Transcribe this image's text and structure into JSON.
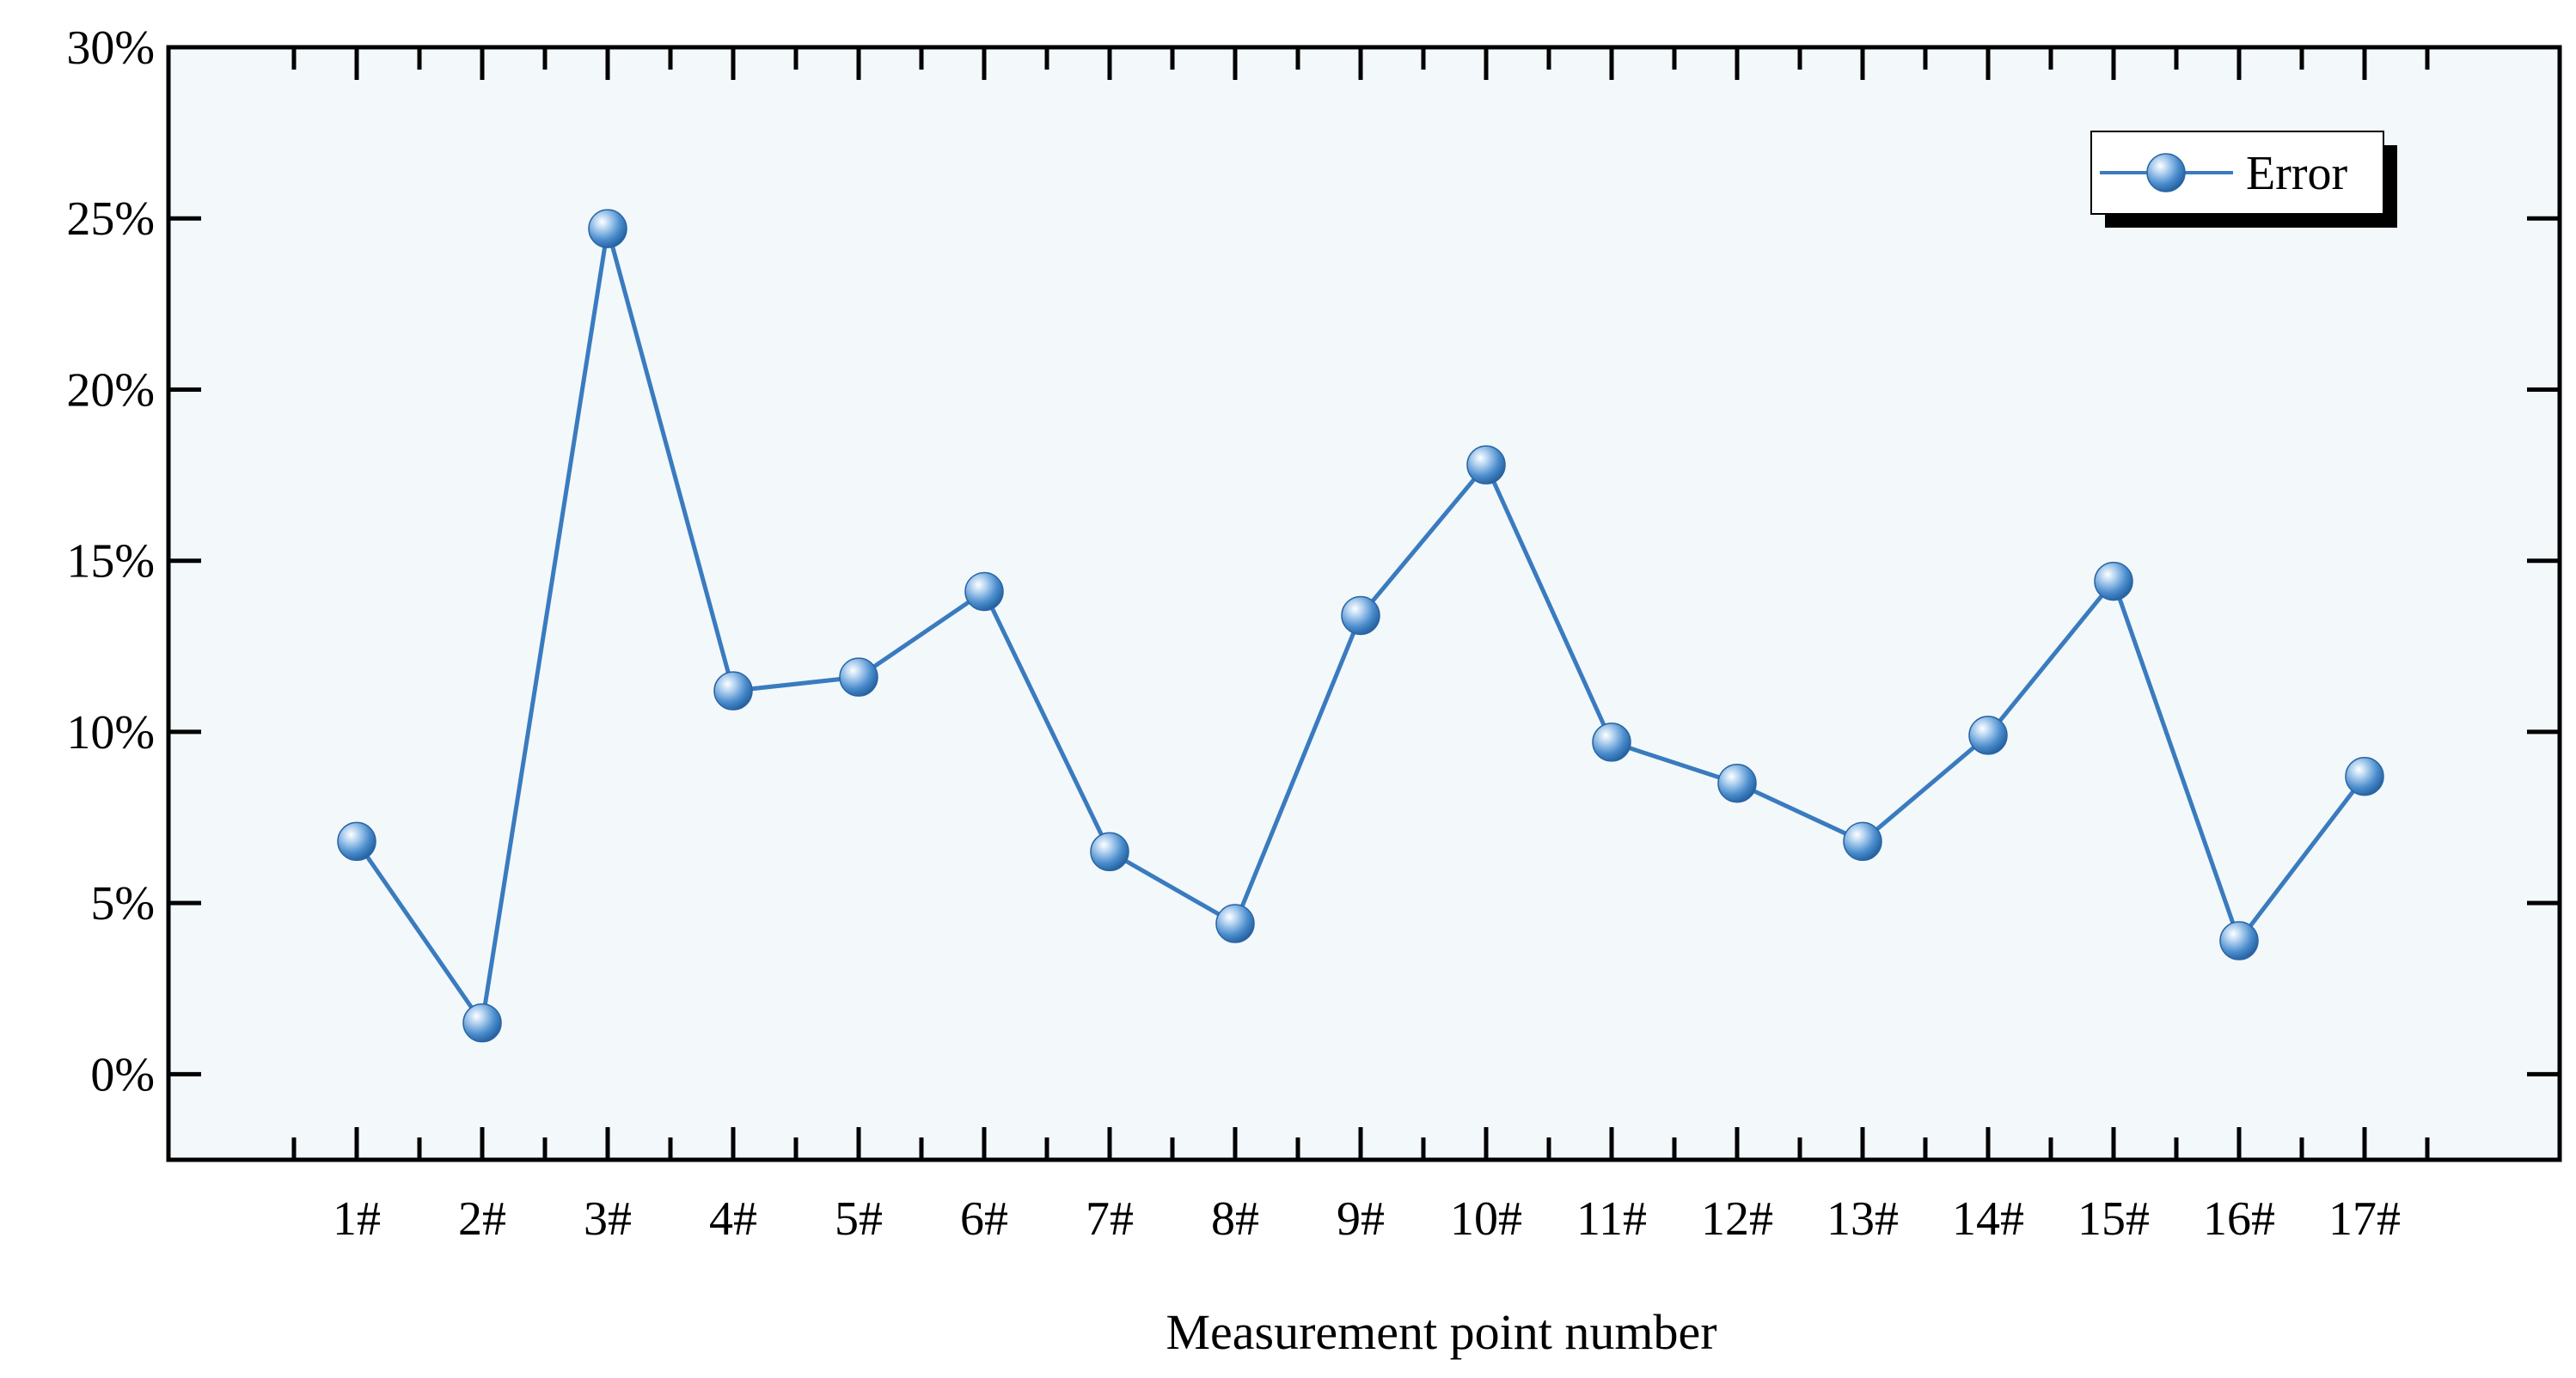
{
  "chart_data": {
    "type": "line",
    "categories": [
      "1#",
      "2#",
      "3#",
      "4#",
      "5#",
      "6#",
      "7#",
      "8#",
      "9#",
      "10#",
      "11#",
      "12#",
      "13#",
      "14#",
      "15#",
      "16#",
      "17#"
    ],
    "series": [
      {
        "name": "Error",
        "values": [
          6.8,
          1.5,
          24.7,
          11.2,
          11.6,
          14.1,
          6.5,
          4.4,
          13.4,
          17.8,
          9.7,
          8.5,
          6.8,
          9.9,
          14.4,
          3.9,
          8.7
        ]
      }
    ],
    "xlabel": "Measurement point number",
    "ylabel": "",
    "ylim": [
      -2.5,
      30
    ],
    "yticks": [
      0,
      5,
      10,
      15,
      20,
      25,
      30
    ],
    "ytick_labels": [
      "0%",
      "5%",
      "10%",
      "15%",
      "20%",
      "25%",
      "30%"
    ],
    "legend_position": "top-right",
    "grid": false,
    "colors": {
      "line": "#3a7bbf",
      "marker": "#3a7bbf",
      "plot_background": "#f3f8fb",
      "axis": "#000000"
    }
  }
}
